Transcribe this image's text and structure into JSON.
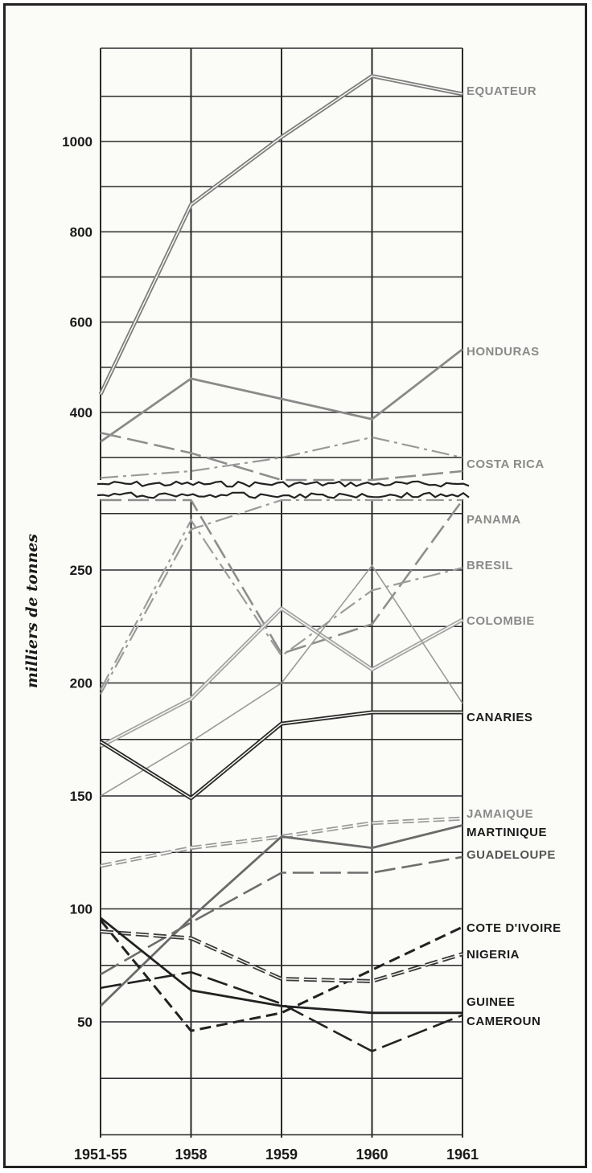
{
  "chart_data": [
    {
      "type": "line",
      "panel": "upper",
      "categories": [
        "1951-55",
        "1958",
        "1959",
        "1960",
        "1961"
      ],
      "ylabel": "milliers de tonnes",
      "ylim": [
        290,
        1180
      ],
      "yticks": [
        400,
        600,
        800,
        1000
      ],
      "grid": true,
      "series": [
        {
          "name": "EQUATEUR",
          "values": [
            440,
            860,
            1010,
            1145,
            1105
          ],
          "color": "#7e7e7e",
          "style": "double"
        },
        {
          "name": "HONDURAS",
          "values": [
            335,
            475,
            430,
            385,
            540
          ],
          "color": "#8a8a8a",
          "style": "solid"
        },
        {
          "name": "COSTA RICA",
          "values": [
            255,
            270,
            300,
            345,
            300
          ],
          "color": "#9a9a9a",
          "style": "dashdot"
        },
        {
          "name": "PANAMA",
          "values": [
            355,
            310,
            235,
            205,
            270
          ],
          "color": "#8e8e8e",
          "style": "longdash"
        }
      ]
    },
    {
      "type": "line",
      "panel": "lower",
      "categories": [
        "1951-55",
        "1958",
        "1959",
        "1960",
        "1961"
      ],
      "ylabel": "milliers de tonnes",
      "ylim": [
        0,
        280
      ],
      "yticks": [
        50,
        100,
        150,
        200,
        250
      ],
      "grid": true,
      "series": [
        {
          "name": "COSTA RICA",
          "values": [
            195,
            268,
            300,
            300,
            283
          ],
          "color": "#9a9a9a",
          "style": "dashdot"
        },
        {
          "name": "PANAMA",
          "values": [
            300,
            300,
            213,
            226,
            287
          ],
          "color": "#8e8e8e",
          "style": "longdash"
        },
        {
          "name": "BRESIL",
          "values": [
            197,
            272,
            212,
            241,
            251
          ],
          "color": "#9c9c9c",
          "style": "dashdot"
        },
        {
          "name": "COLOMBIE",
          "values": [
            172,
            193,
            233,
            206,
            228
          ],
          "color": "#a5a5a5",
          "style": "double"
        },
        {
          "name": "",
          "values": [
            150,
            174,
            200,
            252,
            191
          ],
          "color": "#9a9a9a",
          "style": "thin"
        },
        {
          "name": "CANARIES",
          "values": [
            174,
            149,
            182,
            187,
            187
          ],
          "color": "#2a2a2a",
          "style": "double"
        },
        {
          "name": "JAMAIQUE",
          "values": [
            119,
            127,
            132,
            138,
            140
          ],
          "color": "#9a9a9a",
          "style": "hollowdash"
        },
        {
          "name": "MARTINIQUE",
          "values": [
            57,
            96,
            132,
            127,
            137
          ],
          "color": "#6a6a6a",
          "style": "solid"
        },
        {
          "name": "GUADELOUPE",
          "values": [
            71,
            94,
            116,
            116,
            123
          ],
          "color": "#6e6e6e",
          "style": "longdash"
        },
        {
          "name": "COTE D'IVOIRE",
          "values": [
            95,
            46,
            54,
            73,
            92
          ],
          "color": "#222222",
          "style": "dash"
        },
        {
          "name": "NIGERIA",
          "values": [
            90,
            87,
            69,
            68,
            80
          ],
          "color": "#3a3a3a",
          "style": "doubledash"
        },
        {
          "name": "GUINEE",
          "values": [
            96,
            64,
            57,
            54,
            54
          ],
          "color": "#222222",
          "style": "solid"
        },
        {
          "name": "CAMEROUN",
          "values": [
            65,
            72,
            58,
            37,
            53
          ],
          "color": "#222222",
          "style": "longdash"
        }
      ]
    }
  ]
}
